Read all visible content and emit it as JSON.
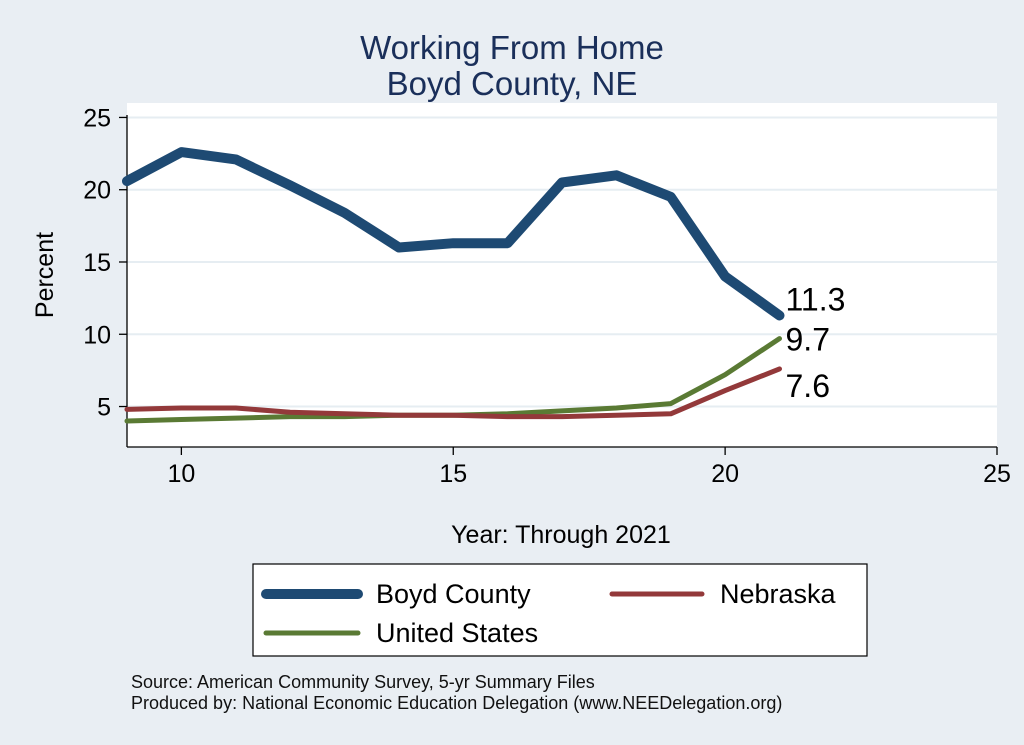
{
  "chart_data": {
    "type": "line",
    "title": "Working From Home",
    "subtitle": "Boyd County, NE",
    "xlabel": "Year: Through 2021",
    "ylabel": "Percent",
    "xlim": [
      9,
      25
    ],
    "ylim": [
      2.2,
      26
    ],
    "xticks": [
      10,
      15,
      20,
      25
    ],
    "yticks": [
      5,
      10,
      15,
      20,
      25
    ],
    "grid": true,
    "legend_position": "bottom",
    "series": [
      {
        "name": "Boyd County",
        "color": "#1e4a73",
        "x": [
          9,
          10,
          11,
          12,
          13,
          14,
          15,
          16,
          17,
          18,
          19,
          20,
          21
        ],
        "y": [
          20.6,
          22.6,
          22.1,
          20.3,
          18.4,
          16.0,
          16.3,
          16.3,
          20.5,
          21.0,
          19.5,
          14.0,
          11.3
        ],
        "end_label": "11.3"
      },
      {
        "name": "Nebraska",
        "color": "#93393a",
        "x": [
          9,
          10,
          11,
          12,
          13,
          14,
          15,
          16,
          17,
          18,
          19,
          20,
          21
        ],
        "y": [
          4.8,
          4.9,
          4.9,
          4.6,
          4.5,
          4.4,
          4.4,
          4.3,
          4.3,
          4.4,
          4.5,
          6.1,
          7.6
        ],
        "end_label": "7.6"
      },
      {
        "name": "United States",
        "color": "#5a7a34",
        "x": [
          9,
          10,
          11,
          12,
          13,
          14,
          15,
          16,
          17,
          18,
          19,
          20,
          21
        ],
        "y": [
          4.0,
          4.1,
          4.2,
          4.3,
          4.3,
          4.4,
          4.4,
          4.5,
          4.7,
          4.9,
          5.2,
          7.2,
          9.7
        ],
        "end_label": "9.7"
      }
    ],
    "footnotes": [
      "Source: American Community Survey, 5-yr Summary Files",
      "Produced by: National Economic Education Delegation (www.NEEDelegation.org)"
    ]
  }
}
